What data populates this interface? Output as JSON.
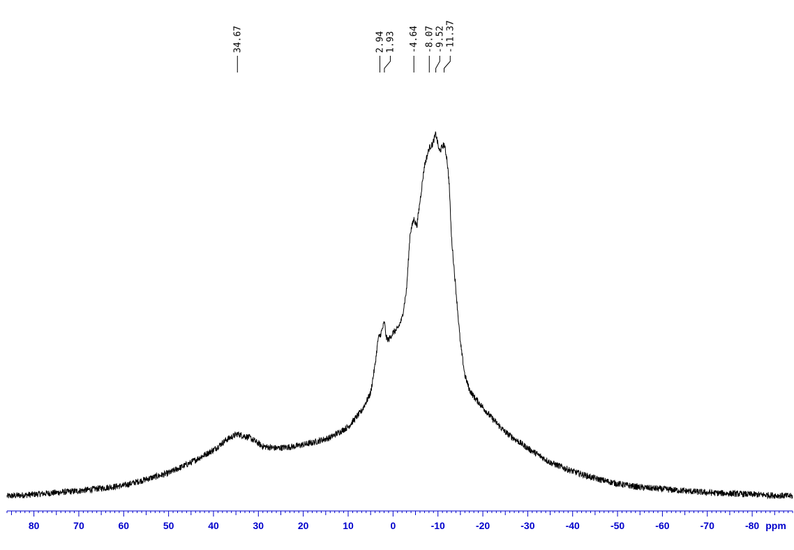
{
  "chart_data": {
    "type": "line",
    "title": "",
    "xlabel": "ppm",
    "ylabel": "",
    "xlim": [
      86,
      -89
    ],
    "x_reversed": true,
    "grid": false,
    "legend": "none",
    "ticks": [
      80,
      70,
      60,
      50,
      40,
      30,
      20,
      10,
      0,
      -10,
      -20,
      -30,
      -40,
      -50,
      -60,
      -70,
      -80
    ],
    "tick_labels": [
      "80",
      "70",
      "60",
      "50",
      "40",
      "30",
      "20",
      "10",
      "0",
      "-10",
      "-20",
      "-30",
      "-40",
      "-50",
      "-60",
      "-70",
      "-80"
    ],
    "peak_labels": [
      {
        "ppm": 34.67,
        "text": "34.67"
      },
      {
        "ppm": 2.94,
        "text": "2.94"
      },
      {
        "ppm": 1.93,
        "text": "1.93"
      },
      {
        "ppm": -4.64,
        "text": "-4.64"
      },
      {
        "ppm": -8.07,
        "text": "-8.07"
      },
      {
        "ppm": -9.52,
        "text": "-9.52"
      },
      {
        "ppm": -11.37,
        "text": "-11.37"
      }
    ],
    "series": [
      {
        "color": "#000000",
        "x": [
          86,
          80,
          70,
          60,
          50,
          45,
          40,
          37,
          34.67,
          32,
          29,
          26,
          22,
          18,
          14,
          10,
          7,
          5,
          4,
          3.3,
          2.94,
          2.5,
          1.93,
          1.5,
          1,
          0,
          -1,
          -2,
          -3,
          -3.8,
          -4.64,
          -5.3,
          -6,
          -7,
          -8.07,
          -8.8,
          -9.52,
          -10.3,
          -11.37,
          -12,
          -12.5,
          -13,
          -14,
          -15,
          -16,
          -17,
          -18,
          -20,
          -22,
          -25,
          -30,
          -35,
          -40,
          -45,
          -50,
          -55,
          -60,
          -70,
          -80,
          -89
        ],
        "y": [
          0.02,
          0.025,
          0.035,
          0.05,
          0.085,
          0.115,
          0.15,
          0.18,
          0.195,
          0.185,
          0.16,
          0.155,
          0.16,
          0.17,
          0.185,
          0.215,
          0.26,
          0.31,
          0.39,
          0.465,
          0.47,
          0.485,
          0.51,
          0.465,
          0.46,
          0.48,
          0.49,
          0.52,
          0.6,
          0.76,
          0.8,
          0.78,
          0.85,
          0.95,
          1.0,
          1.01,
          1.04,
          0.99,
          1.01,
          0.97,
          0.9,
          0.75,
          0.6,
          0.45,
          0.36,
          0.32,
          0.3,
          0.27,
          0.24,
          0.2,
          0.155,
          0.115,
          0.09,
          0.07,
          0.055,
          0.045,
          0.04,
          0.03,
          0.025,
          0.02
        ]
      }
    ]
  }
}
